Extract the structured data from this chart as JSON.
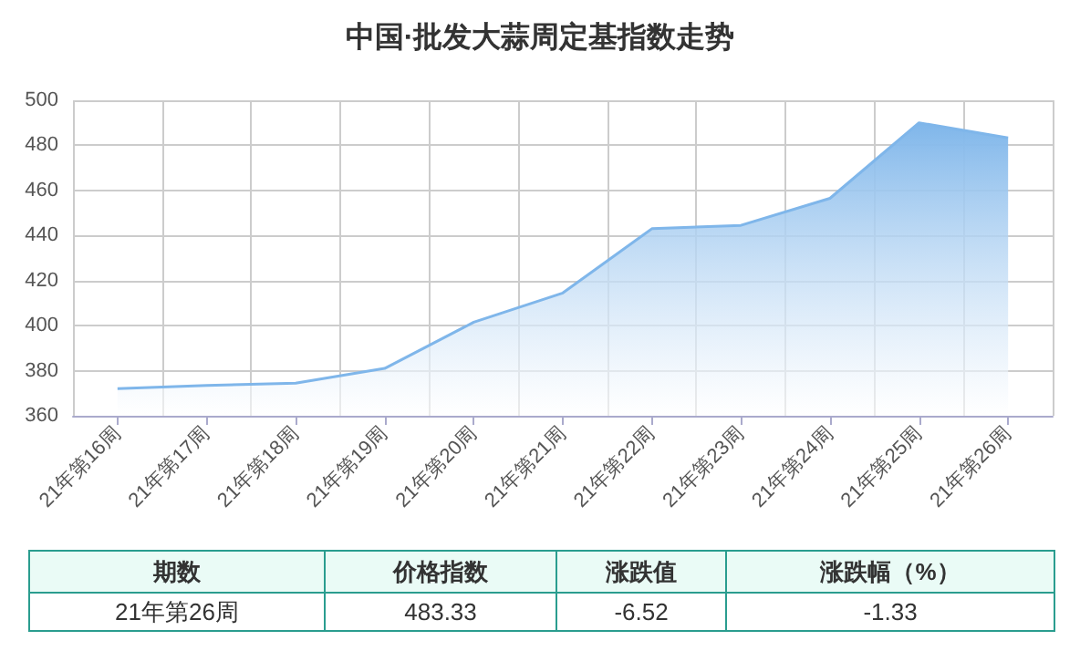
{
  "chart_data": {
    "type": "area",
    "title": "中国·批发大蒜周定基指数走势",
    "categories": [
      "21年第16周",
      "21年第17周",
      "21年第18周",
      "21年第19周",
      "21年第20周",
      "21年第21周",
      "21年第22周",
      "21年第23周",
      "21年第24周",
      "21年第25周",
      "21年第26周"
    ],
    "values": [
      372,
      373.5,
      374.5,
      381,
      401.5,
      414.5,
      443,
      444.5,
      456.5,
      490,
      483.33
    ],
    "color": "#7fb6ea",
    "ylim": [
      360,
      500
    ],
    "yticks": [
      360,
      380,
      400,
      420,
      440,
      460,
      480,
      500
    ],
    "grid": true,
    "marker": "none",
    "annotations": [
      "期数",
      "价格指数",
      "涨跌值",
      "涨跌幅（%）",
      "21年第26周",
      "483.33",
      "-6.52",
      "-1.33"
    ]
  }
}
